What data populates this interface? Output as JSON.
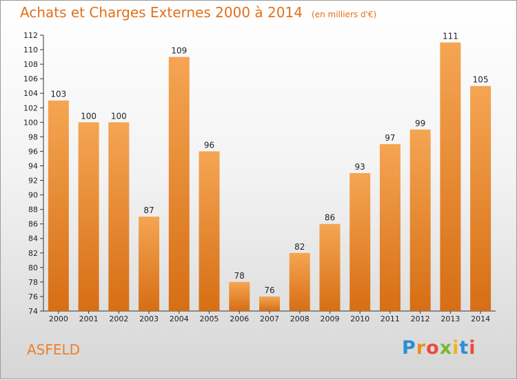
{
  "chart_data": {
    "type": "bar",
    "title": "Achats et Charges Externes 2000 à 2014",
    "subtitle": "(en milliers d'€)",
    "xlabel": "",
    "ylabel": "",
    "categories": [
      "2000",
      "2001",
      "2002",
      "2003",
      "2004",
      "2005",
      "2006",
      "2007",
      "2008",
      "2009",
      "2010",
      "2011",
      "2012",
      "2013",
      "2014"
    ],
    "values": [
      103,
      100,
      100,
      87,
      109,
      96,
      78,
      76,
      82,
      86,
      93,
      97,
      99,
      111,
      105
    ],
    "ylim": [
      74,
      112
    ],
    "yticks": [
      74,
      76,
      78,
      80,
      82,
      84,
      86,
      88,
      90,
      92,
      94,
      96,
      98,
      100,
      102,
      104,
      106,
      108,
      110,
      112
    ],
    "grid": false,
    "bar_color_top": "#f5a553",
    "bar_color_bottom": "#d66e14"
  },
  "commune": "ASFELD",
  "brand": {
    "letters": [
      "P",
      "r",
      "o",
      "x",
      "i",
      "t",
      "i"
    ],
    "colors": [
      "#2a8fd6",
      "#f08a1c",
      "#e94b3c",
      "#7ab82e",
      "#f2b318",
      "#2a8fd6",
      "#e94b3c"
    ]
  }
}
